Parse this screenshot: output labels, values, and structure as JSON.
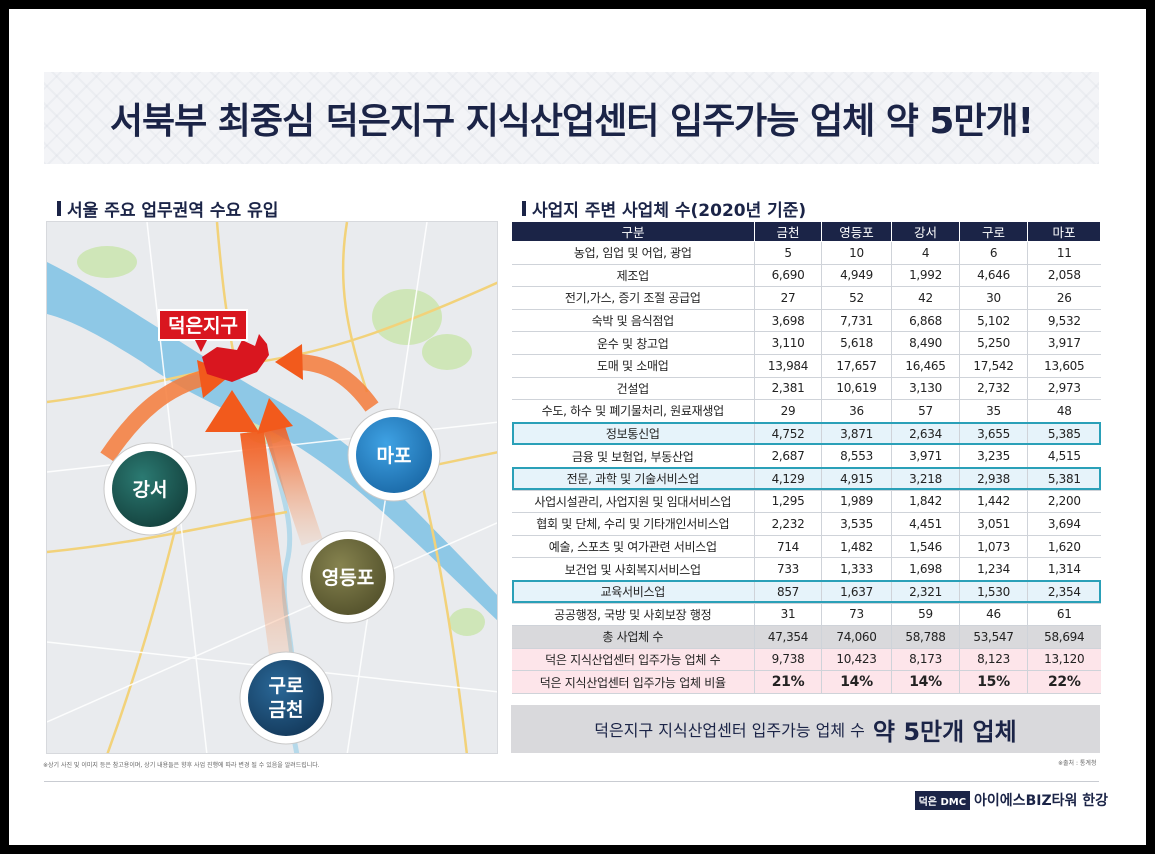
{
  "title": "서북부 최중심 덕은지구 지식산업센터 입주가능 업체 약 5만개!",
  "left_section": {
    "title": "서울 주요 업무권역 수요 유입",
    "map": {
      "target_label": "덕은지구",
      "districts": [
        "강서",
        "마포",
        "영등포",
        "구로",
        "금천"
      ],
      "note": "※상기 사진 및 이미지 등은 참고용이며, 상기 내용들은 향후 사업 진행에 따라 변경 될 수 있음을 알려드립니다."
    }
  },
  "right_section": {
    "title": "사업지 주변 사업체 수(2020년 기준)",
    "columns": [
      "구분",
      "금천",
      "영등포",
      "강서",
      "구로",
      "마포"
    ],
    "rows": [
      {
        "cells": [
          "농업, 임업 및 어업, 광업",
          "5",
          "10",
          "4",
          "6",
          "11"
        ],
        "style": ""
      },
      {
        "cells": [
          "제조업",
          "6,690",
          "4,949",
          "1,992",
          "4,646",
          "2,058"
        ],
        "style": ""
      },
      {
        "cells": [
          "전기,가스, 증기 조절 공급업",
          "27",
          "52",
          "42",
          "30",
          "26"
        ],
        "style": ""
      },
      {
        "cells": [
          "숙박 및 음식점업",
          "3,698",
          "7,731",
          "6,868",
          "5,102",
          "9,532"
        ],
        "style": ""
      },
      {
        "cells": [
          "운수 및 창고업",
          "3,110",
          "5,618",
          "8,490",
          "5,250",
          "3,917"
        ],
        "style": ""
      },
      {
        "cells": [
          "도매 및 소매업",
          "13,984",
          "17,657",
          "16,465",
          "17,542",
          "13,605"
        ],
        "style": ""
      },
      {
        "cells": [
          "건설업",
          "2,381",
          "10,619",
          "3,130",
          "2,732",
          "2,973"
        ],
        "style": ""
      },
      {
        "cells": [
          "수도, 하수 및 폐기물처리, 원료재생업",
          "29",
          "36",
          "57",
          "35",
          "48"
        ],
        "style": ""
      },
      {
        "cells": [
          "정보통신업",
          "4,752",
          "3,871",
          "2,634",
          "3,655",
          "5,385"
        ],
        "style": "hl"
      },
      {
        "cells": [
          "금융 및 보험업, 부동산업",
          "2,687",
          "8,553",
          "3,971",
          "3,235",
          "4,515"
        ],
        "style": ""
      },
      {
        "cells": [
          "전문, 과학 및 기술서비스업",
          "4,129",
          "4,915",
          "3,218",
          "2,938",
          "5,381"
        ],
        "style": "hl"
      },
      {
        "cells": [
          "사업시설관리, 사업지원 및 임대서비스업",
          "1,295",
          "1,989",
          "1,842",
          "1,442",
          "2,200"
        ],
        "style": ""
      },
      {
        "cells": [
          "협회 및 단체, 수리 및 기타개인서비스업",
          "2,232",
          "3,535",
          "4,451",
          "3,051",
          "3,694"
        ],
        "style": ""
      },
      {
        "cells": [
          "예술, 스포츠 및 여가관련 서비스업",
          "714",
          "1,482",
          "1,546",
          "1,073",
          "1,620"
        ],
        "style": ""
      },
      {
        "cells": [
          "보건업 및 사회복지서비스업",
          "733",
          "1,333",
          "1,698",
          "1,234",
          "1,314"
        ],
        "style": ""
      },
      {
        "cells": [
          "교육서비스업",
          "857",
          "1,637",
          "2,321",
          "1,530",
          "2,354"
        ],
        "style": "hl"
      },
      {
        "cells": [
          "공공행정, 국방 및 사회보장 행정",
          "31",
          "73",
          "59",
          "46",
          "61"
        ],
        "style": ""
      },
      {
        "cells": [
          "총 사업체 수",
          "47,354",
          "74,060",
          "58,788",
          "53,547",
          "58,694"
        ],
        "style": "total"
      },
      {
        "cells": [
          "덕은 지식산업센터 입주가능 업체 수",
          "9,738",
          "10,423",
          "8,173",
          "8,123",
          "13,120"
        ],
        "style": "pink"
      },
      {
        "cells": [
          "덕은 지식산업센터 입주가능 업체 비율",
          "21%",
          "14%",
          "14%",
          "15%",
          "22%"
        ],
        "style": "pink bold"
      }
    ],
    "summary_prefix": "덕은지구 지식산업센터 입주가능 업체 수",
    "summary_highlight": "약 5만개 업체",
    "source": "※출처 : 통계청"
  },
  "footer": {
    "brand_box": "덕은 DMC",
    "brand_name": "아이에스BIZ타워 한강"
  },
  "colors": {
    "navy": "#1b2447",
    "highlight_border": "#2aa0b8",
    "highlight_fill": "#e6f3fa",
    "pink_fill": "#fde5ea",
    "total_fill": "#d9d9dc",
    "target_red": "#d9161f",
    "gangseo": "#1f5a55",
    "mapo": "#2a86c9",
    "yeongdeungpo": "#6c6a3c",
    "guro": "#1c4f7a"
  }
}
